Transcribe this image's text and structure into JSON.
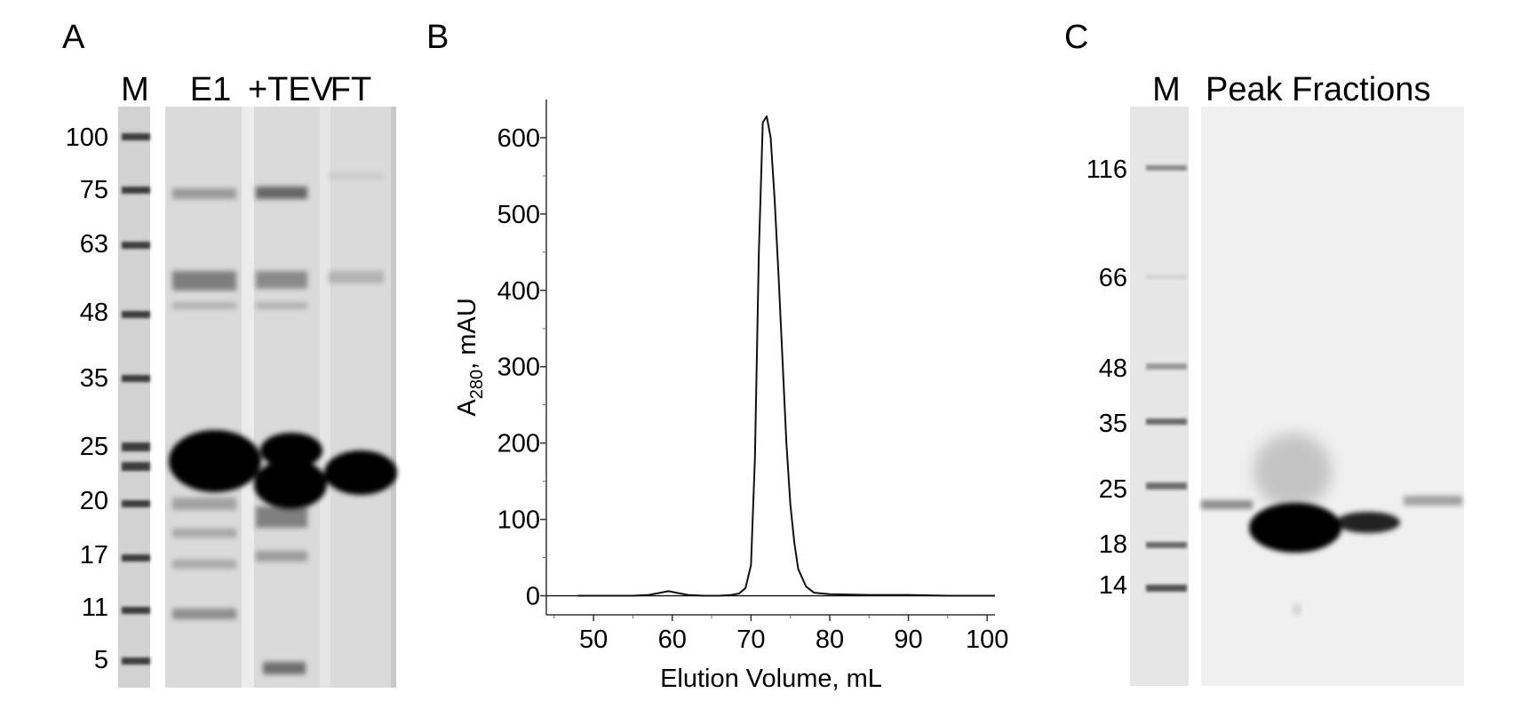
{
  "panels": {
    "A": {
      "letter": "A",
      "lanes": [
        "M",
        "E1",
        "+TEV",
        "FT"
      ],
      "marker_kda": [
        "100",
        "75",
        "63",
        "48",
        "35",
        "25",
        "20",
        "17",
        "11",
        "5"
      ]
    },
    "B": {
      "letter": "B",
      "xlabel": "Elution Volume, mL",
      "ylabel_main": "A",
      "ylabel_sub": "280",
      "ylabel_rest": ", mAU"
    },
    "C": {
      "letter": "C",
      "lanes": [
        "M",
        "Peak Fractions"
      ],
      "marker_kda": [
        "116",
        "66",
        "48",
        "35",
        "25",
        "18",
        "14"
      ]
    }
  },
  "chart_data": {
    "type": "line",
    "xlabel": "Elution Volume, mL",
    "ylabel": "A280, mAU",
    "xlim": [
      44,
      101
    ],
    "ylim": [
      -25,
      650
    ],
    "xticks": [
      50,
      60,
      70,
      80,
      90,
      100
    ],
    "yticks": [
      0,
      100,
      200,
      300,
      400,
      500,
      600
    ],
    "grid": false,
    "series": [
      {
        "x": [
          48,
          55,
          57,
          58.5,
          59.5,
          60.5,
          62,
          64,
          66,
          67.5,
          68.5,
          69.3,
          70,
          70.5,
          71,
          71.5,
          72,
          72.5,
          73,
          73.5,
          74,
          74.5,
          75,
          75.5,
          76,
          77,
          78,
          80,
          85,
          90,
          95,
          101
        ],
        "y": [
          0,
          0,
          1,
          4,
          6,
          4,
          1,
          0,
          0,
          1,
          3,
          10,
          40,
          180,
          450,
          620,
          628,
          600,
          520,
          420,
          310,
          200,
          120,
          70,
          35,
          12,
          4,
          2,
          1,
          1,
          0,
          0
        ]
      },
      {
        "x": [
          44,
          101
        ],
        "y": [
          0,
          0
        ]
      }
    ]
  }
}
